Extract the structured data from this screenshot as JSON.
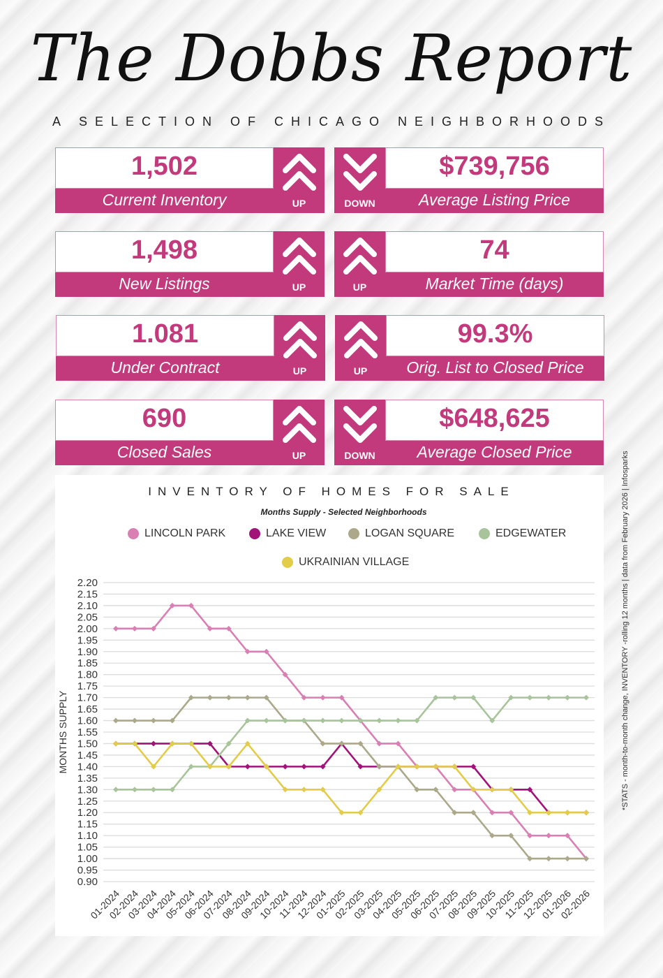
{
  "header": {
    "title": "The Dobbs Report",
    "subtitle": "A SELECTION OF CHICAGO NEIGHBORHOODS"
  },
  "accent": "#c23a7b",
  "stats": [
    {
      "value": "1,502",
      "label": "Current Inventory",
      "direction": "UP",
      "icon": "double-chevron-up-icon"
    },
    {
      "value": "$739,756",
      "label": "Average Listing Price",
      "direction": "DOWN",
      "icon": "double-chevron-down-icon"
    },
    {
      "value": "1,498",
      "label": "New Listings",
      "direction": "UP",
      "icon": "double-chevron-up-icon"
    },
    {
      "value": "74",
      "label": "Market Time (days)",
      "direction": "UP",
      "icon": "double-chevron-up-icon"
    },
    {
      "value": "1.081",
      "label": "Under Contract",
      "direction": "UP",
      "icon": "double-chevron-up-icon"
    },
    {
      "value": "99.3%",
      "label": "Orig. List to Closed Price",
      "direction": "UP",
      "icon": "double-chevron-up-icon"
    },
    {
      "value": "690",
      "label": "Closed Sales",
      "direction": "UP",
      "icon": "double-chevron-up-icon"
    },
    {
      "value": "$648,625",
      "label": "Average Closed Price",
      "direction": "DOWN",
      "icon": "double-chevron-down-icon"
    }
  ],
  "footnote": "*STATS - month-to-month change, INVENTORY -rolling 12 months | data from February 2026 | Infosparks",
  "chart_data": {
    "type": "line",
    "title": "INVENTORY OF HOMES FOR SALE",
    "subtitle": "Months Supply - Selected Neighborhoods",
    "ylabel": "MONTHS SUPPLY",
    "xlabel": "",
    "ylim": [
      0.9,
      2.2
    ],
    "ytick_step": 0.05,
    "grid": true,
    "legend_position": "top",
    "x": [
      "01-2024",
      "02-2024",
      "03-2024",
      "04-2024",
      "05-2024",
      "06-2024",
      "07-2024",
      "08-2024",
      "09-2024",
      "10-2024",
      "11-2024",
      "12-2024",
      "01-2025",
      "02-2025",
      "03-2025",
      "04-2025",
      "05-2025",
      "06-2025",
      "07-2025",
      "08-2025",
      "09-2025",
      "10-2025",
      "11-2025",
      "12-2025",
      "01-2026",
      "02-2026"
    ],
    "series": [
      {
        "name": "LINCOLN PARK",
        "color": "#d97fb4",
        "values": [
          2.0,
          2.0,
          2.0,
          2.1,
          2.1,
          2.0,
          2.0,
          1.9,
          1.9,
          1.8,
          1.7,
          1.7,
          1.7,
          1.6,
          1.5,
          1.5,
          1.4,
          1.4,
          1.3,
          1.3,
          1.2,
          1.2,
          1.1,
          1.1,
          1.1,
          1.0
        ]
      },
      {
        "name": "LAKE VIEW",
        "color": "#a2137a",
        "values": [
          1.5,
          1.5,
          1.5,
          1.5,
          1.5,
          1.5,
          1.4,
          1.4,
          1.4,
          1.4,
          1.4,
          1.4,
          1.5,
          1.4,
          1.4,
          1.4,
          1.4,
          1.4,
          1.4,
          1.4,
          1.3,
          1.3,
          1.3,
          1.2,
          1.2,
          1.2
        ]
      },
      {
        "name": "LOGAN SQUARE",
        "color": "#aba98a",
        "values": [
          1.6,
          1.6,
          1.6,
          1.6,
          1.7,
          1.7,
          1.7,
          1.7,
          1.7,
          1.6,
          1.6,
          1.5,
          1.5,
          1.5,
          1.4,
          1.4,
          1.3,
          1.3,
          1.2,
          1.2,
          1.1,
          1.1,
          1.0,
          1.0,
          1.0,
          1.0
        ]
      },
      {
        "name": "EDGEWATER",
        "color": "#a8c49a",
        "values": [
          1.3,
          1.3,
          1.3,
          1.3,
          1.4,
          1.4,
          1.5,
          1.6,
          1.6,
          1.6,
          1.6,
          1.6,
          1.6,
          1.6,
          1.6,
          1.6,
          1.6,
          1.7,
          1.7,
          1.7,
          1.6,
          1.7,
          1.7,
          1.7,
          1.7,
          1.7
        ]
      },
      {
        "name": "UKRAINIAN VILLAGE",
        "color": "#e2cc4a",
        "values": [
          1.5,
          1.5,
          1.4,
          1.5,
          1.5,
          1.4,
          1.4,
          1.5,
          1.4,
          1.3,
          1.3,
          1.3,
          1.2,
          1.2,
          1.3,
          1.4,
          1.4,
          1.4,
          1.4,
          1.3,
          1.3,
          1.3,
          1.2,
          1.2,
          1.2,
          1.2
        ]
      }
    ]
  }
}
